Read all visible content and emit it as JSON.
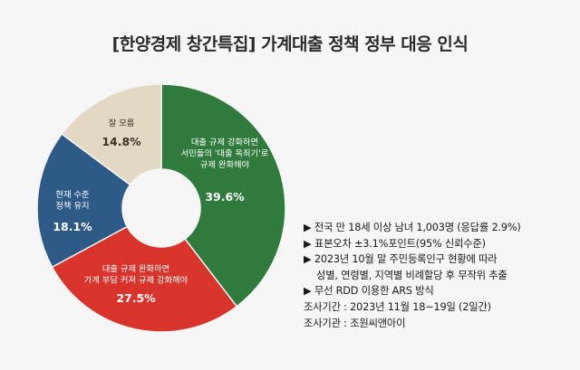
{
  "chart_data": {
    "type": "pie",
    "title": "[한양경제 창간특집] 가계대출 정책 정부 대응 인식",
    "slices": [
      {
        "label_lines": [
          "대출 규제 강화하면",
          "서민들의 '대출 옥죄기'로",
          "규제 완화해야"
        ],
        "value": 39.6,
        "value_label": "39.6%",
        "color": "#2f7a3c"
      },
      {
        "label_lines": [
          "대출 규제 완화하면",
          "가계 부담 커져 규제 강화해야"
        ],
        "value": 27.5,
        "value_label": "27.5%",
        "color": "#d8342c"
      },
      {
        "label_lines": [
          "현재 수준",
          "정책 유지"
        ],
        "value": 18.1,
        "value_label": "18.1%",
        "color": "#2d5a87"
      },
      {
        "label_lines": [
          "잘 모름"
        ],
        "value": 14.8,
        "value_label": "14.8%",
        "color": "#e3d8c3"
      }
    ]
  },
  "notes": {
    "lines": [
      "▶ 전국 만 18세 이상 남녀 1,003명 (응답률 2.9%)",
      "▶ 표본오차 ±3.1%포인트(95% 신뢰수준)",
      "▶ 2023년 10월 말 주민등록인구 현황에 따라",
      "성별, 연령별, 지역별 비례할당 후 무작위 추출",
      "▶ 무선 RDD 이용한 ARS 방식",
      "조사기간 : 2023년 11월 18~19일 (2일간)",
      "조사기관 : 조원씨앤아이"
    ]
  }
}
